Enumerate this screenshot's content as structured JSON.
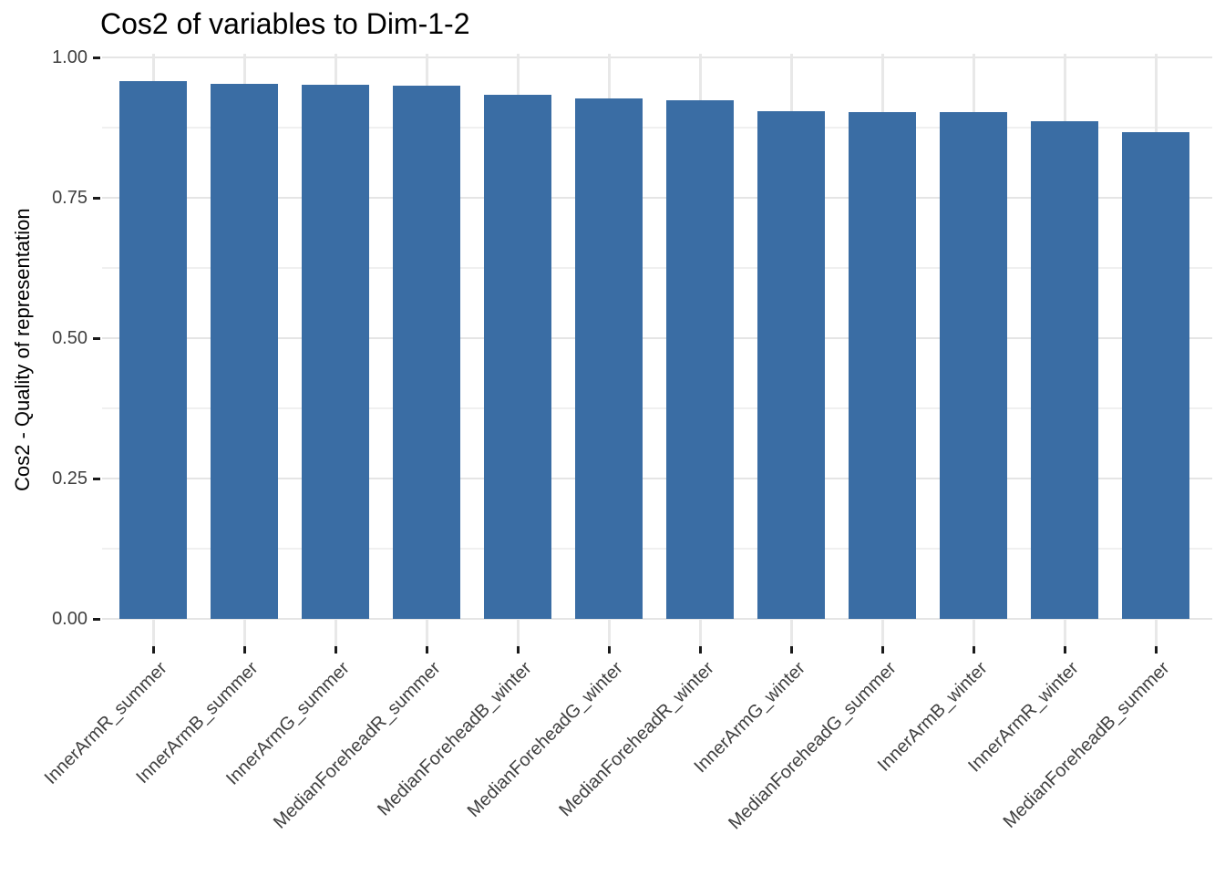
{
  "chart_data": {
    "type": "bar",
    "title": "Cos2 of variables to Dim-1-2",
    "xlabel": "",
    "ylabel": "Cos2 - Quality of representation",
    "categories": [
      "InnerArmR_summer",
      "InnerArmB_summer",
      "InnerArmG_summer",
      "MedianForeheadR_summer",
      "MedianForeheadB_winter",
      "MedianForeheadG_winter",
      "MedianForeheadR_winter",
      "InnerArmG_winter",
      "MedianForeheadG_summer",
      "InnerArmB_winter",
      "InnerArmR_winter",
      "MedianForeheadB_summer"
    ],
    "values": [
      0.958,
      0.953,
      0.951,
      0.95,
      0.934,
      0.927,
      0.924,
      0.904,
      0.903,
      0.902,
      0.887,
      0.867
    ],
    "ylim": [
      0,
      1.0
    ],
    "y_ticks": [
      0.0,
      0.25,
      0.5,
      0.75,
      1.0
    ],
    "y_tick_labels": [
      "0.00",
      "0.25",
      "0.50",
      "0.75",
      "1.00"
    ],
    "y_minor_ticks": [
      0.125,
      0.375,
      0.625,
      0.875
    ],
    "x_label_rotation_deg": 45,
    "bar_color": "#3A6DA4",
    "grid": true,
    "legend": "none",
    "sort_order": "descending"
  }
}
